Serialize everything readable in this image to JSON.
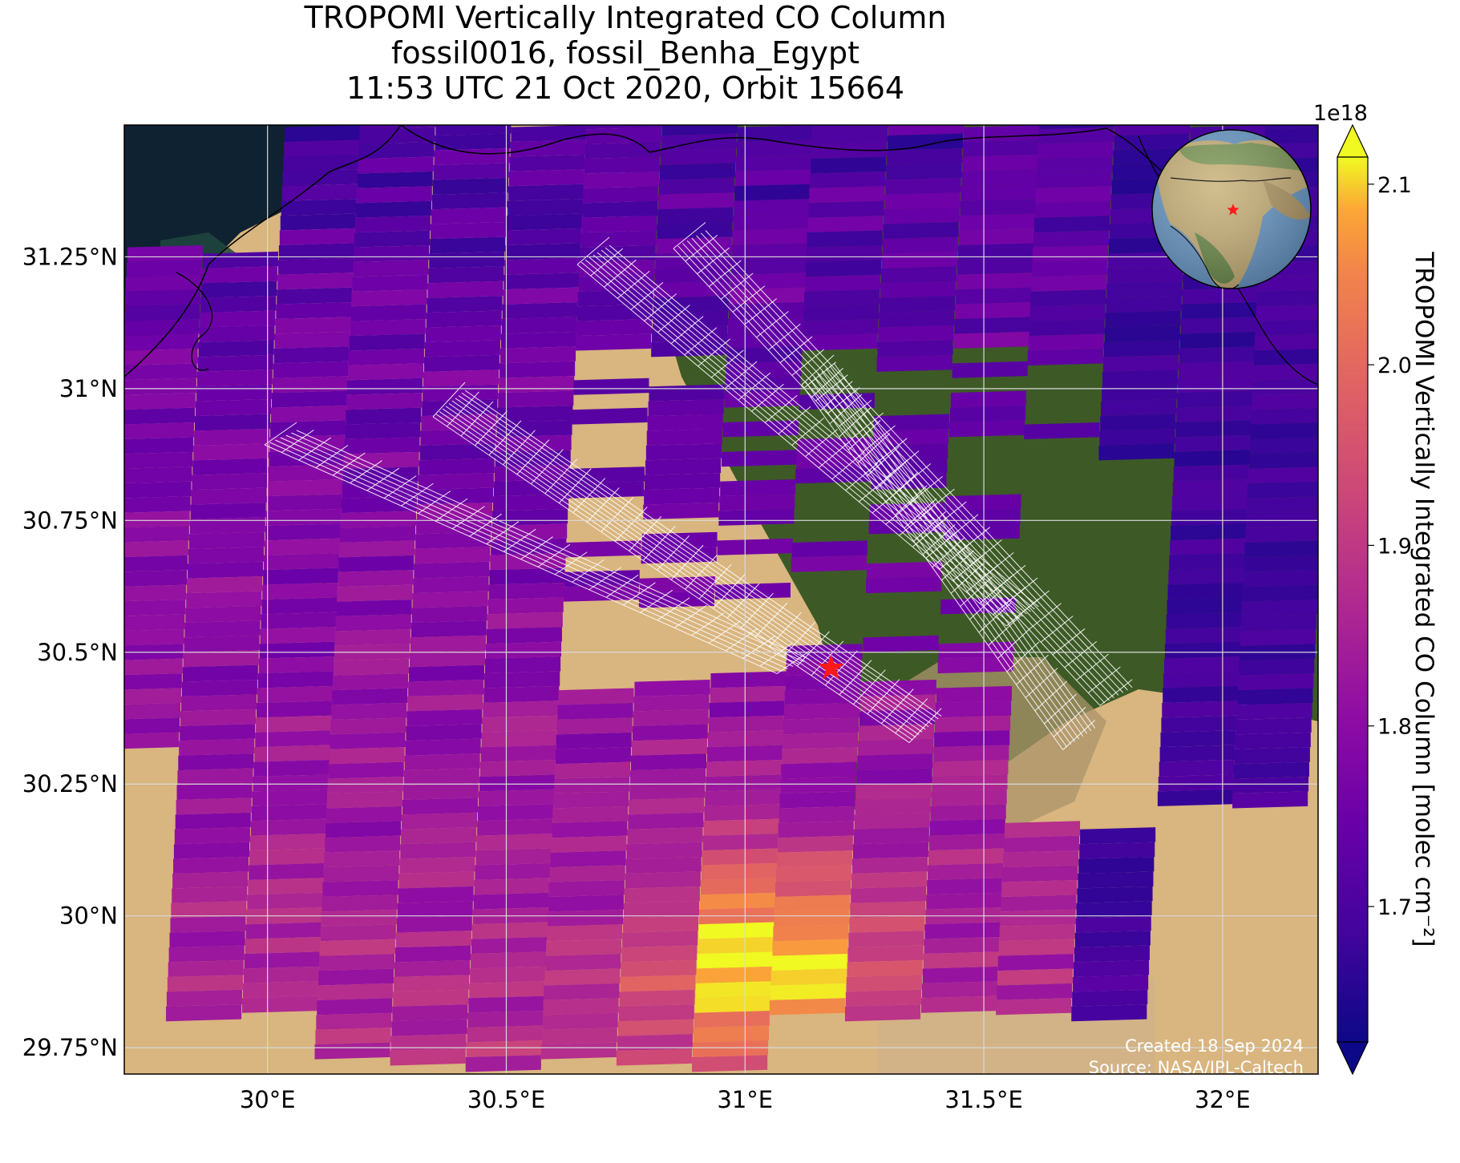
{
  "title": {
    "line1": "TROPOMI Vertically Integrated CO Column",
    "line2": "fossil0016, fossil_Benha_Egypt",
    "line3": "11:53 UTC 21 Oct 2020, Orbit 15664"
  },
  "credits": {
    "created": "Created 18 Sep 2024",
    "source": "Source: NASA/JPL-Caltech"
  },
  "colorbar": {
    "label": "TROPOMI Vertically Integrated CO Column [molec cm⁻²]",
    "exponent": "1e18",
    "ticks": [
      "1.7",
      "1.8",
      "1.9",
      "2.0",
      "2.1"
    ],
    "tick_values": [
      1.7,
      1.8,
      1.9,
      2.0,
      2.1
    ],
    "range": [
      1.625,
      2.115
    ],
    "colormap": "plasma",
    "extend": "both"
  },
  "map": {
    "lon_range": [
      29.7,
      32.2
    ],
    "lat_range": [
      29.7,
      31.5
    ],
    "lon_ticks": [
      {
        "value": 30.0,
        "label": "30°E"
      },
      {
        "value": 30.5,
        "label": "30.5°E"
      },
      {
        "value": 31.0,
        "label": "31°E"
      },
      {
        "value": 31.5,
        "label": "31.5°E"
      },
      {
        "value": 32.0,
        "label": "32°E"
      }
    ],
    "lat_ticks": [
      {
        "value": 29.75,
        "label": "29.75°N"
      },
      {
        "value": 30.0,
        "label": "30°N"
      },
      {
        "value": 30.25,
        "label": "30.25°N"
      },
      {
        "value": 30.5,
        "label": "30.5°N"
      },
      {
        "value": 30.75,
        "label": "30.75°N"
      },
      {
        "value": 31.0,
        "label": "31°N"
      },
      {
        "value": 31.25,
        "label": "31.25°N"
      }
    ],
    "grid": true,
    "site_marker": {
      "lon": 31.18,
      "lat": 30.47,
      "color": "#ff1a1a"
    },
    "inset_globe": {
      "position": "top-right",
      "marker_color": "#ff1a1a"
    },
    "colors": {
      "sea": "#0f2231",
      "desert": "#d9b57f",
      "delta": "#3d5a26",
      "grid": "#d9d9d9",
      "target_grid": "#ffffff"
    }
  }
}
